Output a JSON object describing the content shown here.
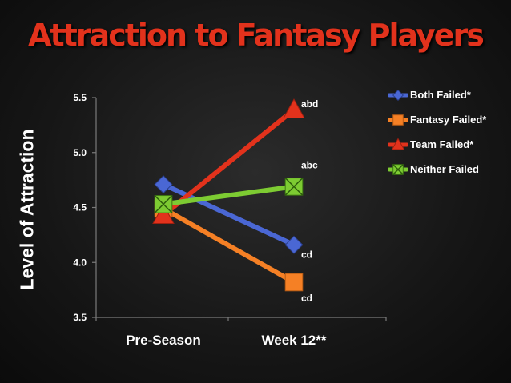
{
  "chart_data": {
    "type": "line",
    "title": "Attraction to Fantasy Players",
    "ylabel": "Level of Attraction",
    "xlabel": "",
    "categories": [
      "Pre-Season",
      "Week 12**"
    ],
    "ylim": [
      3.5,
      5.5
    ],
    "yticks": [
      "3.5",
      "4.0",
      "4.5",
      "5.0",
      "5.5"
    ],
    "grid": false,
    "legend_position": "top-right",
    "series": [
      {
        "name": "Both Failed*",
        "values": [
          4.71,
          4.16
        ],
        "color": "#4a67d4",
        "marker": "diamond",
        "end_label": "cd"
      },
      {
        "name": "Fantasy Failed*",
        "values": [
          4.49,
          3.82
        ],
        "color": "#f58025",
        "marker": "square",
        "end_label": "cd"
      },
      {
        "name": "Team Failed*",
        "values": [
          4.43,
          5.39
        ],
        "color": "#e2321c",
        "marker": "triangle",
        "end_label": "abd"
      },
      {
        "name": "Neither Failed",
        "values": [
          4.53,
          4.69
        ],
        "color": "#7dcb32",
        "marker": "x-square",
        "end_label": "abc"
      }
    ]
  }
}
